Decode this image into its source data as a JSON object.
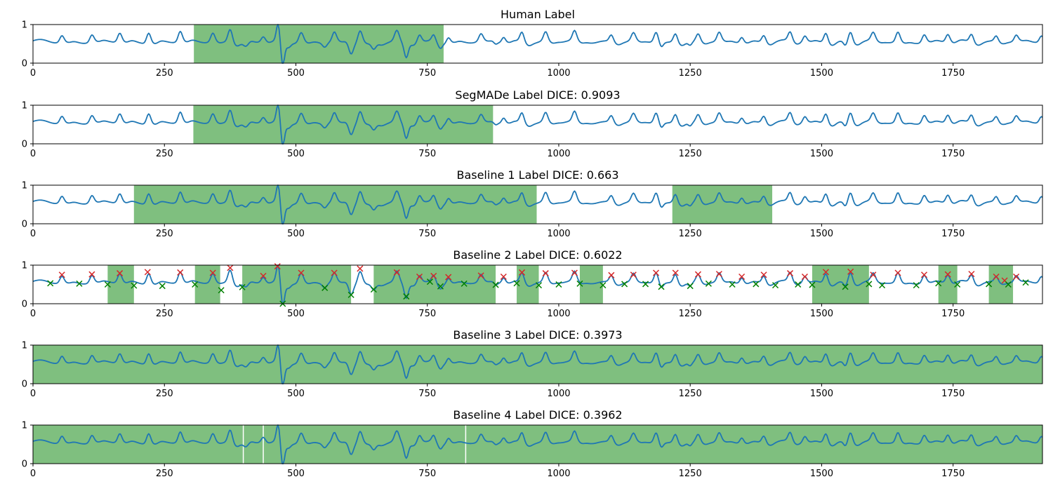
{
  "chart_data": [
    {
      "type": "line",
      "title": "Human Label",
      "xlim": [
        0,
        1920
      ],
      "ylim": [
        0,
        1
      ],
      "xticks": [
        0,
        250,
        500,
        750,
        1000,
        1250,
        1500,
        1750
      ],
      "yticks": [
        0,
        1
      ],
      "series_color": "#1f77b4",
      "shade_color": "#008000",
      "shaded_intervals": [
        [
          306,
          781
        ]
      ],
      "markers": null
    },
    {
      "type": "line",
      "title": "SegMADe Label DICE: 0.9093",
      "xlim": [
        0,
        1920
      ],
      "ylim": [
        0,
        1
      ],
      "xticks": [
        0,
        250,
        500,
        750,
        1000,
        1250,
        1500,
        1750
      ],
      "yticks": [
        0,
        1
      ],
      "series_color": "#1f77b4",
      "shade_color": "#008000",
      "shaded_intervals": [
        [
          305,
          875
        ]
      ],
      "markers": null
    },
    {
      "type": "line",
      "title": "Baseline 1 Label DICE: 0.663",
      "xlim": [
        0,
        1920
      ],
      "ylim": [
        0,
        1
      ],
      "xticks": [
        0,
        250,
        500,
        750,
        1000,
        1250,
        1500,
        1750
      ],
      "yticks": [
        0,
        1
      ],
      "series_color": "#1f77b4",
      "shade_color": "#008000",
      "shaded_intervals": [
        [
          192,
          958
        ],
        [
          1216,
          1406
        ]
      ],
      "markers": null
    },
    {
      "type": "line",
      "title": "Baseline 2 Label DICE: 0.6022",
      "xlim": [
        0,
        1920
      ],
      "ylim": [
        0,
        1
      ],
      "xticks": [
        0,
        250,
        500,
        750,
        1000,
        1250,
        1500,
        1750
      ],
      "yticks": [
        0,
        1
      ],
      "series_color": "#1f77b4",
      "shade_color": "#008000",
      "shaded_intervals": [
        [
          142,
          192
        ],
        [
          308,
          356
        ],
        [
          398,
          605
        ],
        [
          648,
          880
        ],
        [
          920,
          962
        ],
        [
          1040,
          1084
        ],
        [
          1482,
          1590
        ],
        [
          1722,
          1758
        ],
        [
          1818,
          1864
        ]
      ],
      "markers": {
        "red_x": [
          [
            55,
            0.75
          ],
          [
            112,
            0.76
          ],
          [
            165,
            0.79
          ],
          [
            218,
            0.82
          ],
          [
            280,
            0.81
          ],
          [
            342,
            0.8
          ],
          [
            375,
            0.93
          ],
          [
            438,
            0.72
          ],
          [
            465,
            0.97
          ],
          [
            510,
            0.8
          ],
          [
            573,
            0.8
          ],
          [
            622,
            0.91
          ],
          [
            692,
            0.81
          ],
          [
            735,
            0.7
          ],
          [
            762,
            0.72
          ],
          [
            790,
            0.69
          ],
          [
            852,
            0.73
          ],
          [
            895,
            0.7
          ],
          [
            930,
            0.81
          ],
          [
            975,
            0.79
          ],
          [
            1030,
            0.8
          ],
          [
            1100,
            0.74
          ],
          [
            1142,
            0.75
          ],
          [
            1185,
            0.8
          ],
          [
            1222,
            0.8
          ],
          [
            1265,
            0.76
          ],
          [
            1305,
            0.77
          ],
          [
            1348,
            0.7
          ],
          [
            1390,
            0.75
          ],
          [
            1440,
            0.79
          ],
          [
            1468,
            0.7
          ],
          [
            1508,
            0.82
          ],
          [
            1555,
            0.83
          ],
          [
            1598,
            0.75
          ],
          [
            1645,
            0.8
          ],
          [
            1695,
            0.75
          ],
          [
            1740,
            0.76
          ],
          [
            1785,
            0.77
          ],
          [
            1832,
            0.7
          ],
          [
            1848,
            0.6
          ],
          [
            1870,
            0.7
          ]
        ],
        "green_x": [
          [
            33,
            0.53
          ],
          [
            88,
            0.52
          ],
          [
            142,
            0.5
          ],
          [
            192,
            0.47
          ],
          [
            246,
            0.46
          ],
          [
            308,
            0.5
          ],
          [
            358,
            0.35
          ],
          [
            398,
            0.43
          ],
          [
            475,
            0.0
          ],
          [
            555,
            0.41
          ],
          [
            605,
            0.23
          ],
          [
            648,
            0.37
          ],
          [
            710,
            0.19
          ],
          [
            755,
            0.57
          ],
          [
            775,
            0.45
          ],
          [
            820,
            0.52
          ],
          [
            880,
            0.49
          ],
          [
            920,
            0.53
          ],
          [
            962,
            0.48
          ],
          [
            1000,
            0.5
          ],
          [
            1040,
            0.52
          ],
          [
            1084,
            0.48
          ],
          [
            1125,
            0.51
          ],
          [
            1165,
            0.51
          ],
          [
            1195,
            0.44
          ],
          [
            1250,
            0.46
          ],
          [
            1285,
            0.52
          ],
          [
            1330,
            0.5
          ],
          [
            1375,
            0.51
          ],
          [
            1412,
            0.48
          ],
          [
            1455,
            0.5
          ],
          [
            1482,
            0.49
          ],
          [
            1545,
            0.44
          ],
          [
            1590,
            0.51
          ],
          [
            1615,
            0.48
          ],
          [
            1680,
            0.48
          ],
          [
            1722,
            0.53
          ],
          [
            1758,
            0.5
          ],
          [
            1818,
            0.51
          ],
          [
            1855,
            0.5
          ],
          [
            1888,
            0.55
          ]
        ]
      }
    },
    {
      "type": "line",
      "title": "Baseline 3 Label DICE: 0.3973",
      "xlim": [
        0,
        1920
      ],
      "ylim": [
        0,
        1
      ],
      "xticks": [
        0,
        250,
        500,
        750,
        1000,
        1250,
        1500,
        1750
      ],
      "yticks": [
        0,
        1
      ],
      "series_color": "#1f77b4",
      "shade_color": "#008000",
      "shaded_intervals": [
        [
          0,
          1920
        ]
      ],
      "markers": null
    },
    {
      "type": "line",
      "title": "Baseline 4 Label DICE: 0.3962",
      "xlim": [
        0,
        1920
      ],
      "ylim": [
        0,
        1
      ],
      "xticks": [
        0,
        250,
        500,
        750,
        1000,
        1250,
        1500,
        1750
      ],
      "yticks": [
        0,
        1
      ],
      "series_color": "#1f77b4",
      "shade_color": "#008000",
      "shaded_intervals": [
        [
          0,
          399
        ],
        [
          401,
          437
        ],
        [
          439,
          822
        ],
        [
          824,
          1920
        ]
      ],
      "markers": null
    }
  ],
  "signal": {
    "x_start": 0,
    "x_end": 1920,
    "baseline": 0.56,
    "beats": [
      {
        "x": 55,
        "amp": 0.17,
        "w": 5.5
      },
      {
        "x": 112,
        "amp": 0.18,
        "w": 5.5
      },
      {
        "x": 165,
        "amp": 0.22,
        "w": 5.5
      },
      {
        "x": 220,
        "amp": 0.26,
        "w": 5.5
      },
      {
        "x": 280,
        "amp": 0.26,
        "w": 5.5
      },
      {
        "x": 342,
        "amp": 0.22,
        "w": 5.5
      },
      {
        "x": 375,
        "amp": 0.36,
        "w": 6
      },
      {
        "x": 405,
        "amp": -0.15,
        "w": 7
      },
      {
        "x": 438,
        "amp": 0.14,
        "w": 5.5
      },
      {
        "x": 466,
        "amp": 0.42,
        "w": 4.5
      },
      {
        "x": 475,
        "amp": -0.55,
        "w": 4.5
      },
      {
        "x": 510,
        "amp": 0.25,
        "w": 6
      },
      {
        "x": 555,
        "amp": -0.12,
        "w": 6
      },
      {
        "x": 573,
        "amp": 0.23,
        "w": 5.5
      },
      {
        "x": 605,
        "amp": -0.3,
        "w": 6
      },
      {
        "x": 622,
        "amp": 0.34,
        "w": 6
      },
      {
        "x": 648,
        "amp": -0.18,
        "w": 6
      },
      {
        "x": 692,
        "amp": 0.26,
        "w": 6
      },
      {
        "x": 710,
        "amp": -0.37,
        "w": 5.5
      },
      {
        "x": 735,
        "amp": 0.16,
        "w": 5
      },
      {
        "x": 762,
        "amp": 0.17,
        "w": 5
      },
      {
        "x": 775,
        "amp": -0.1,
        "w": 5
      },
      {
        "x": 790,
        "amp": 0.14,
        "w": 5
      },
      {
        "x": 852,
        "amp": 0.18,
        "w": 5.5
      },
      {
        "x": 880,
        "amp": -0.07,
        "w": 5
      },
      {
        "x": 895,
        "amp": 0.14,
        "w": 5
      },
      {
        "x": 930,
        "amp": 0.25,
        "w": 5.5
      },
      {
        "x": 975,
        "amp": 0.23,
        "w": 5.5
      },
      {
        "x": 1030,
        "amp": 0.24,
        "w": 5.5
      },
      {
        "x": 1100,
        "amp": 0.18,
        "w": 5.5
      },
      {
        "x": 1142,
        "amp": 0.19,
        "w": 5.5
      },
      {
        "x": 1185,
        "amp": 0.24,
        "w": 5.5
      },
      {
        "x": 1195,
        "amp": -0.12,
        "w": 5
      },
      {
        "x": 1222,
        "amp": 0.24,
        "w": 5.5
      },
      {
        "x": 1250,
        "amp": -0.1,
        "w": 5
      },
      {
        "x": 1265,
        "amp": 0.2,
        "w": 5.5
      },
      {
        "x": 1305,
        "amp": 0.21,
        "w": 5.5
      },
      {
        "x": 1348,
        "amp": 0.14,
        "w": 5
      },
      {
        "x": 1390,
        "amp": 0.19,
        "w": 5.5
      },
      {
        "x": 1440,
        "amp": 0.23,
        "w": 5.5
      },
      {
        "x": 1468,
        "amp": 0.14,
        "w": 5
      },
      {
        "x": 1508,
        "amp": 0.26,
        "w": 5.5
      },
      {
        "x": 1545,
        "amp": -0.12,
        "w": 5
      },
      {
        "x": 1555,
        "amp": 0.27,
        "w": 5.5
      },
      {
        "x": 1598,
        "amp": 0.19,
        "w": 5.5
      },
      {
        "x": 1645,
        "amp": 0.24,
        "w": 5.5
      },
      {
        "x": 1695,
        "amp": 0.19,
        "w": 5.5
      },
      {
        "x": 1740,
        "amp": 0.2,
        "w": 5.5
      },
      {
        "x": 1785,
        "amp": 0.21,
        "w": 5.5
      },
      {
        "x": 1832,
        "amp": 0.14,
        "w": 5
      },
      {
        "x": 1870,
        "amp": 0.14,
        "w": 5
      },
      {
        "x": 1918,
        "amp": 0.16,
        "w": 5.5
      }
    ]
  }
}
